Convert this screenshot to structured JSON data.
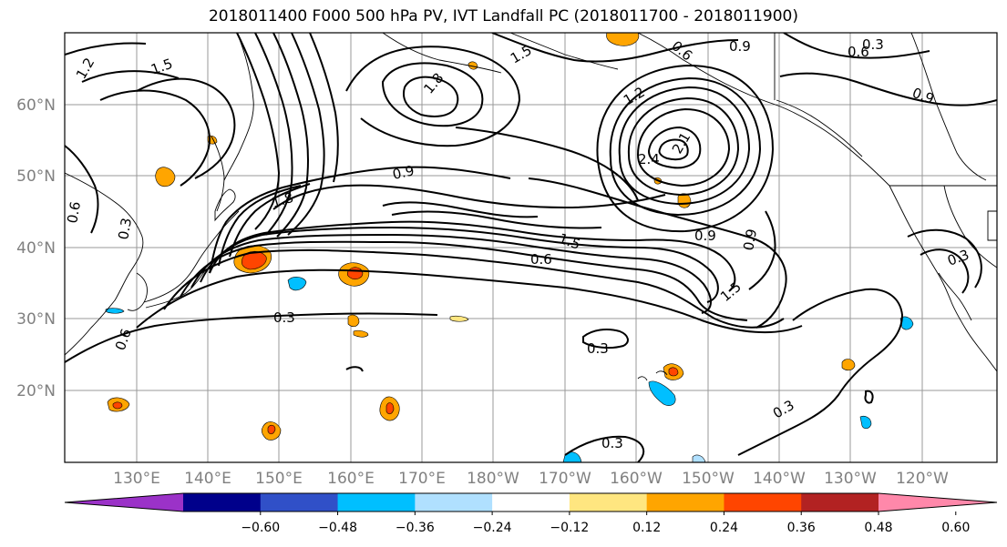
{
  "title": "2018011400 F000 500 hPa PV, IVT Landfall PC (2018011700 - 2018011900)",
  "lat_labels": [
    "60°N",
    "50°N",
    "40°N",
    "30°N",
    "20°N"
  ],
  "lon_labels": [
    "130°E",
    "140°E",
    "150°E",
    "160°E",
    "170°E",
    "180°W",
    "170°W",
    "160°W",
    "150°W",
    "140°W",
    "130°W",
    "120°W"
  ],
  "colorbar": {
    "ticks": [
      "−0.60",
      "−0.48",
      "−0.36",
      "−0.24",
      "−0.12",
      "0.12",
      "0.24",
      "0.36",
      "0.48",
      "0.60"
    ],
    "colors": [
      "#9b32c8",
      "#00008b",
      "#3050c8",
      "#00bfff",
      "#b0e0ff",
      "#ffffff",
      "#ffe680",
      "#ffa500",
      "#ff4500",
      "#b22222",
      "#ff88aa"
    ]
  },
  "contour_labels": [
    "1.2",
    "1.5",
    "0.6",
    "0.9",
    "1.8",
    "2.4",
    "2.1",
    "0.3",
    "0.6",
    "0.9",
    "0.3",
    "0.3",
    "0.3",
    "0.6",
    "0.3",
    "0.6",
    "1.5",
    "0.9",
    "0.9",
    "1.5",
    "1.8",
    "0.3",
    "0.9",
    "0.6",
    "1.2",
    "1.5",
    "0.3"
  ]
}
